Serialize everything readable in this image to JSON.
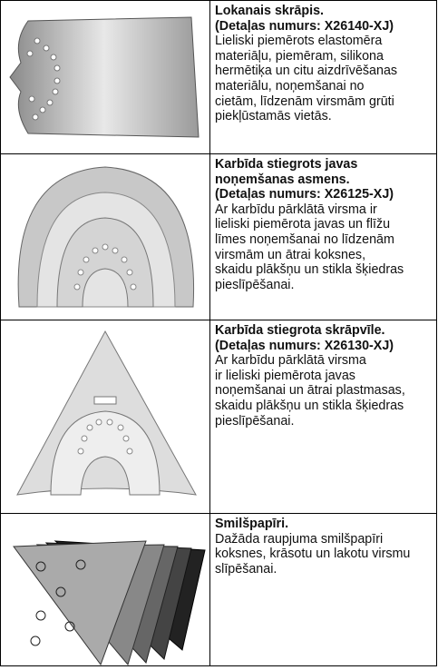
{
  "rows": [
    {
      "title": [
        "Lokanais skrāpis.",
        "(Detaļas numurs: X26140-XJ)"
      ],
      "body": [
        "Lieliski piemērots elastomēra",
        "materiāļu, piemēram, silikona",
        "hermētiķa un citu aizdrīvēšanas",
        "materiālu, noņemšanai no",
        "cietām, līdzenām virsmām grūti",
        "piekļūstamās vietās."
      ]
    },
    {
      "title": [
        "Karbīda stiegrots javas",
        "noņemšanas asmens.",
        "(Detaļas numurs: X26125-XJ)"
      ],
      "body": [
        "Ar karbīdu pārklātā virsma ir",
        "lieliski piemērota javas un flīžu",
        "līmes noņemšanai no līdzenām",
        "virsmām un ātrai koksnes,",
        "skaidu plākšņu un stikla šķiedras",
        "pieslīpēšanai."
      ]
    },
    {
      "title": [
        "Karbīda stiegrota skrāpvīle.",
        "(Detaļas numurs: X26130-XJ)"
      ],
      "body": [
        "Ar karbīdu pārklātā virsma",
        "ir lieliski piemērota javas",
        "noņemšanai un ātrai plastmasas,",
        "skaidu plākšņu un stikla šķiedras",
        "pieslīpēšanai."
      ]
    },
    {
      "title": [
        "Smilšpapīri."
      ],
      "body": [
        "Dažāda raupjuma smilšpapīri",
        "koksnes, krāsotu un lakotu virsmu",
        "slīpēšanai."
      ]
    }
  ]
}
